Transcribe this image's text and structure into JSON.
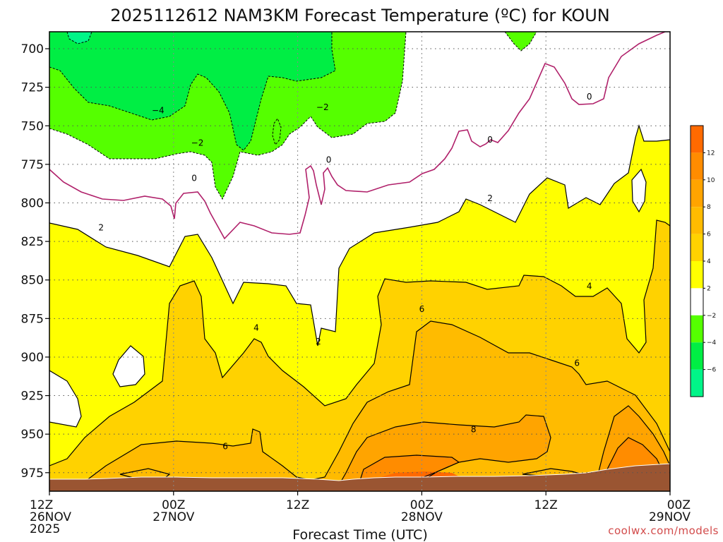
{
  "chart_data": {
    "type": "heatmap",
    "title": "2025112612 NAM3KM Forecast Temperature (ºC) for KOUN",
    "xlabel": "Forecast Time (UTC)",
    "ylabel": "",
    "x_ticks": [
      {
        "hour": 0,
        "lines": [
          "12Z",
          "26NOV",
          "2025"
        ]
      },
      {
        "hour": 12,
        "lines": [
          "00Z",
          "27NOV"
        ]
      },
      {
        "hour": 24,
        "lines": [
          "12Z"
        ]
      },
      {
        "hour": 36,
        "lines": [
          "00Z",
          "28NOV"
        ]
      },
      {
        "hour": 48,
        "lines": [
          "12Z"
        ]
      },
      {
        "hour": 60,
        "lines": [
          "00Z",
          "29NOV"
        ]
      }
    ],
    "xlim": [
      0,
      60
    ],
    "y_ticks": [
      700,
      725,
      750,
      775,
      800,
      825,
      850,
      875,
      900,
      925,
      950,
      975
    ],
    "ylim": [
      689,
      987
    ],
    "colorbar": {
      "ticks": [
        "12",
        "10",
        "8",
        "6",
        "4",
        "2",
        "−2",
        "−4",
        "−6"
      ],
      "bins": [
        {
          "range": "12 to 14",
          "color": "#ff6a00"
        },
        {
          "range": "10 to 12",
          "color": "#ff8c00"
        },
        {
          "range": "8 to 10",
          "color": "#ffa400"
        },
        {
          "range": "6 to 8",
          "color": "#ffbb00"
        },
        {
          "range": "4 to 6",
          "color": "#ffd200"
        },
        {
          "range": "2 to 4",
          "color": "#ffff00"
        },
        {
          "range": "-2 to 2",
          "color": "#ffffff"
        },
        {
          "range": "-4 to -2",
          "color": "#55ff00"
        },
        {
          "range": "-6 to -4",
          "color": "#00ee44"
        },
        {
          "range": "-8 to -6",
          "color": "#00f588"
        }
      ]
    },
    "contour_labels": [
      {
        "text": "−4",
        "hour": 10.5,
        "pres": 740
      },
      {
        "text": "−2",
        "hour": 14.3,
        "pres": 761
      },
      {
        "text": "−2",
        "hour": 26.4,
        "pres": 738
      },
      {
        "text": "0",
        "hour": 14.0,
        "pres": 784
      },
      {
        "text": "0",
        "hour": 27.0,
        "pres": 772
      },
      {
        "text": "0",
        "hour": 42.6,
        "pres": 759
      },
      {
        "text": "0",
        "hour": 52.2,
        "pres": 731
      },
      {
        "text": "2",
        "hour": 5.0,
        "pres": 816
      },
      {
        "text": "2",
        "hour": 26.0,
        "pres": 890
      },
      {
        "text": "2",
        "hour": 42.6,
        "pres": 797
      },
      {
        "text": "4",
        "hour": 20.0,
        "pres": 881
      },
      {
        "text": "4",
        "hour": 52.2,
        "pres": 854
      },
      {
        "text": "6",
        "hour": 17.0,
        "pres": 958
      },
      {
        "text": "6",
        "hour": 36.0,
        "pres": 869
      },
      {
        "text": "6",
        "hour": 51.0,
        "pres": 904
      },
      {
        "text": "8",
        "hour": 41.0,
        "pres": 947
      }
    ],
    "grid": true,
    "legend": "right colorbar"
  },
  "colors": {
    "terrain": "#9a5532",
    "contour_zero": "#b0206a",
    "grid": "#555555",
    "credit": "#d24b4b"
  },
  "credit": "coolwx.com/models"
}
